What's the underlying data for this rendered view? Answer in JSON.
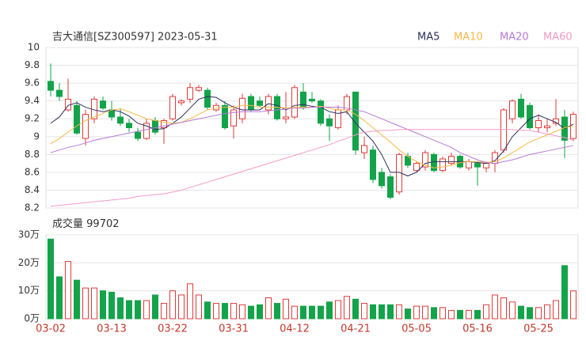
{
  "chart_data": {
    "type": "candlestick",
    "title": "吉大通信[SZ300597] 2023-05-31",
    "categories": [
      "03-02",
      null,
      null,
      null,
      null,
      null,
      null,
      "03-13",
      null,
      null,
      null,
      null,
      null,
      null,
      "03-22",
      null,
      null,
      null,
      null,
      null,
      null,
      "03-31",
      null,
      null,
      null,
      null,
      null,
      null,
      "04-12",
      null,
      null,
      null,
      null,
      null,
      null,
      "04-21",
      null,
      null,
      null,
      null,
      null,
      null,
      "05-05",
      null,
      null,
      null,
      null,
      null,
      null,
      "05-16",
      null,
      null,
      null,
      null,
      null,
      null,
      "05-25",
      null,
      null,
      null,
      null
    ],
    "open": [
      9.62,
      9.52,
      9.3,
      9.35,
      8.98,
      9.2,
      9.4,
      9.3,
      9.22,
      9.15,
      9.05,
      8.98,
      9.18,
      9.1,
      9.2,
      9.38,
      9.42,
      9.52,
      9.52,
      9.3,
      9.35,
      9.12,
      9.2,
      9.45,
      9.4,
      9.3,
      9.45,
      9.2,
      9.22,
      9.5,
      9.42,
      9.4,
      9.2,
      9.1,
      9.3,
      9.5,
      8.82,
      8.85,
      8.6,
      8.55,
      8.38,
      8.78,
      8.62,
      8.66,
      8.8,
      8.62,
      8.7,
      8.78,
      8.65,
      8.7,
      8.65,
      8.7,
      8.85,
      9.2,
      9.42,
      9.35,
      9.1,
      9.1,
      9.15,
      9.22,
      8.98
    ],
    "high": [
      9.82,
      9.6,
      9.65,
      9.4,
      9.3,
      9.45,
      9.45,
      9.4,
      9.32,
      9.2,
      9.1,
      9.2,
      9.22,
      9.2,
      9.48,
      9.42,
      9.6,
      9.58,
      9.55,
      9.38,
      9.4,
      9.35,
      9.48,
      9.48,
      9.45,
      9.48,
      9.48,
      9.5,
      9.58,
      9.6,
      9.5,
      9.42,
      9.25,
      9.35,
      9.48,
      9.5,
      9.0,
      8.9,
      8.65,
      8.58,
      8.82,
      8.82,
      8.72,
      8.85,
      8.82,
      8.78,
      8.82,
      8.8,
      8.75,
      8.72,
      8.72,
      8.85,
      9.32,
      9.42,
      9.48,
      9.38,
      9.25,
      9.2,
      9.42,
      9.3,
      9.28
    ],
    "low": [
      9.45,
      9.4,
      9.28,
      9.02,
      8.9,
      9.15,
      9.3,
      9.18,
      9.12,
      9.05,
      8.95,
      8.96,
      9.02,
      8.92,
      9.18,
      9.35,
      9.38,
      9.5,
      9.3,
      9.28,
      9.08,
      8.98,
      9.15,
      9.28,
      9.33,
      9.25,
      9.18,
      9.15,
      9.2,
      9.3,
      9.38,
      9.12,
      8.95,
      9.08,
      9.25,
      8.8,
      8.75,
      8.48,
      8.42,
      8.3,
      8.35,
      8.65,
      8.6,
      8.62,
      8.6,
      8.6,
      8.68,
      8.64,
      8.62,
      8.45,
      8.6,
      8.6,
      8.82,
      9.15,
      9.2,
      9.08,
      9.05,
      9.05,
      9.12,
      8.76,
      8.95
    ],
    "close": [
      9.52,
      9.45,
      9.42,
      9.04,
      9.25,
      9.42,
      9.32,
      9.22,
      9.15,
      9.1,
      8.98,
      9.15,
      9.05,
      9.18,
      9.45,
      9.4,
      9.55,
      9.55,
      9.33,
      9.35,
      9.1,
      9.3,
      9.43,
      9.3,
      9.35,
      9.45,
      9.2,
      9.22,
      9.55,
      9.33,
      9.4,
      9.15,
      9.12,
      9.3,
      9.45,
      8.85,
      8.9,
      8.52,
      8.45,
      8.32,
      8.8,
      8.68,
      8.7,
      8.82,
      8.62,
      8.75,
      8.78,
      8.66,
      8.72,
      8.66,
      8.7,
      8.82,
      9.3,
      9.4,
      9.22,
      9.1,
      9.18,
      9.12,
      9.2,
      8.96,
      9.25
    ],
    "series": [
      {
        "name": "MA5",
        "color": "#2f2f5f",
        "values": [
          9.15,
          9.22,
          9.35,
          9.38,
          9.33,
          9.3,
          9.28,
          9.3,
          9.28,
          9.23,
          9.15,
          9.12,
          9.08,
          9.09,
          9.15,
          9.22,
          9.32,
          9.42,
          9.45,
          9.44,
          9.38,
          9.33,
          9.3,
          9.3,
          9.3,
          9.37,
          9.35,
          9.3,
          9.35,
          9.36,
          9.34,
          9.33,
          9.28,
          9.26,
          9.28,
          9.15,
          9.05,
          8.95,
          8.8,
          8.6,
          8.6,
          8.56,
          8.6,
          8.7,
          8.72,
          8.72,
          8.72,
          8.72,
          8.72,
          8.71,
          8.7,
          8.73,
          8.84,
          9.0,
          9.1,
          9.2,
          9.24,
          9.2,
          9.16,
          9.09,
          9.14
        ]
      },
      {
        "name": "MA10",
        "color": "#f5b947",
        "values": [
          8.92,
          8.98,
          9.05,
          9.12,
          9.18,
          9.22,
          9.26,
          9.3,
          9.31,
          9.28,
          9.24,
          9.2,
          9.18,
          9.16,
          9.15,
          9.16,
          9.2,
          9.25,
          9.3,
          9.32,
          9.33,
          9.33,
          9.35,
          9.35,
          9.33,
          9.33,
          9.33,
          9.32,
          9.33,
          9.33,
          9.33,
          9.34,
          9.32,
          9.3,
          9.3,
          9.25,
          9.18,
          9.1,
          9.02,
          8.94,
          8.85,
          8.78,
          8.72,
          8.68,
          8.65,
          8.66,
          8.68,
          8.71,
          8.72,
          8.72,
          8.71,
          8.72,
          8.76,
          8.82,
          8.88,
          8.94,
          8.98,
          9.02,
          9.06,
          9.1,
          9.12
        ]
      },
      {
        "name": "MA20",
        "color": "#b57ad6",
        "values": [
          8.82,
          8.85,
          8.88,
          8.9,
          8.93,
          8.96,
          8.98,
          9.0,
          9.02,
          9.04,
          9.06,
          9.08,
          9.1,
          9.12,
          9.14,
          9.16,
          9.18,
          9.2,
          9.22,
          9.24,
          9.26,
          9.27,
          9.28,
          9.28,
          9.28,
          9.29,
          9.3,
          9.31,
          9.32,
          9.32,
          9.33,
          9.33,
          9.33,
          9.33,
          9.32,
          9.3,
          9.28,
          9.24,
          9.2,
          9.16,
          9.12,
          9.08,
          9.04,
          9.0,
          8.96,
          8.92,
          8.88,
          8.82,
          8.78,
          8.74,
          8.71,
          8.7,
          8.72,
          8.74,
          8.77,
          8.8,
          8.82,
          8.84,
          8.86,
          8.88,
          8.9
        ]
      },
      {
        "name": "MA60",
        "color": "#f59ac7",
        "values": [
          8.22,
          8.23,
          8.24,
          8.25,
          8.26,
          8.27,
          8.28,
          8.29,
          8.3,
          8.31,
          8.33,
          8.34,
          8.35,
          8.36,
          8.38,
          8.4,
          8.43,
          8.46,
          8.49,
          8.52,
          8.55,
          8.58,
          8.61,
          8.64,
          8.67,
          8.7,
          8.73,
          8.76,
          8.79,
          8.82,
          8.85,
          8.88,
          8.91,
          8.95,
          8.98,
          9.02,
          9.05,
          9.06,
          9.07,
          9.07,
          9.08,
          9.08,
          9.08,
          9.08,
          9.08,
          9.08,
          9.08,
          9.08,
          9.08,
          9.08,
          9.08,
          9.08,
          9.08,
          9.08,
          9.07,
          9.07,
          9.05,
          9.03,
          9.01,
          8.99,
          8.96
        ]
      }
    ],
    "up_color": "#e23b3b",
    "down_color": "#13a34a",
    "ylim": [
      8.2,
      10
    ],
    "yticks": [
      8.2,
      8.4,
      8.6,
      8.8,
      9,
      9.2,
      9.4,
      9.6,
      9.8,
      10
    ],
    "volume_label": "成交量",
    "volume": [
      285000,
      150000,
      205000,
      138000,
      110000,
      110000,
      100000,
      95000,
      75000,
      65000,
      65000,
      65000,
      85000,
      55000,
      100000,
      85000,
      125000,
      85000,
      60000,
      55000,
      55000,
      55000,
      50000,
      45000,
      50000,
      75000,
      55000,
      70000,
      45000,
      45000,
      45000,
      45000,
      60000,
      65000,
      80000,
      70000,
      55000,
      50000,
      50000,
      50000,
      50000,
      35000,
      45000,
      45000,
      40000,
      40000,
      30000,
      30000,
      30000,
      30000,
      50000,
      85000,
      75000,
      60000,
      45000,
      40000,
      40000,
      50000,
      65000,
      190000,
      99702
    ],
    "vlim": [
      0,
      300000
    ],
    "vticks": [
      {
        "value": 0,
        "label": "0万"
      },
      {
        "value": 100000,
        "label": "10万"
      },
      {
        "value": 200000,
        "label": "20万"
      },
      {
        "value": 300000,
        "label": "30万"
      }
    ],
    "grid": true
  }
}
